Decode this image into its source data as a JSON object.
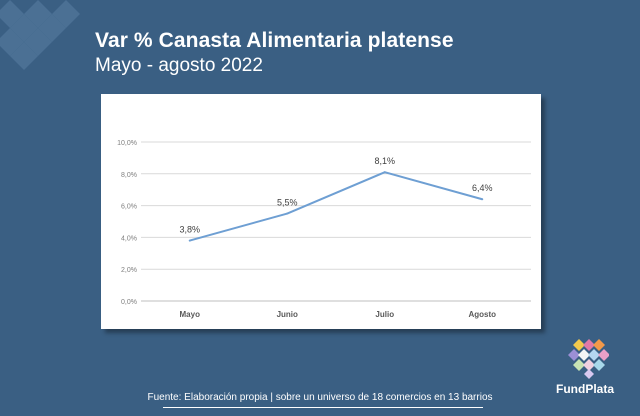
{
  "header": {
    "title": "Var % Canasta Alimentaria platense",
    "subtitle": "Mayo - agosto 2022"
  },
  "footer": {
    "source": "Fuente: Elaboración propia | sobre un universo de 18 comercios en 13 barrios"
  },
  "brand": {
    "name": "FundPlata"
  },
  "colors": {
    "background": "#3a5f83",
    "line": "#6e9fd3",
    "grid": "#d9d9d9"
  },
  "chart_data": {
    "type": "line",
    "categories": [
      "Mayo",
      "Junio",
      "Julio",
      "Agosto"
    ],
    "values": [
      3.8,
      5.5,
      8.1,
      6.4
    ],
    "data_labels": [
      "3,8%",
      "5,5%",
      "8,1%",
      "6,4%"
    ],
    "y_ticks": [
      0,
      2,
      4,
      6,
      8,
      10
    ],
    "y_tick_labels": [
      "0,0%",
      "2,0%",
      "4,0%",
      "6,0%",
      "8,0%",
      "10,0%"
    ],
    "ylim": [
      0,
      10
    ],
    "grid": true,
    "legend": false
  }
}
